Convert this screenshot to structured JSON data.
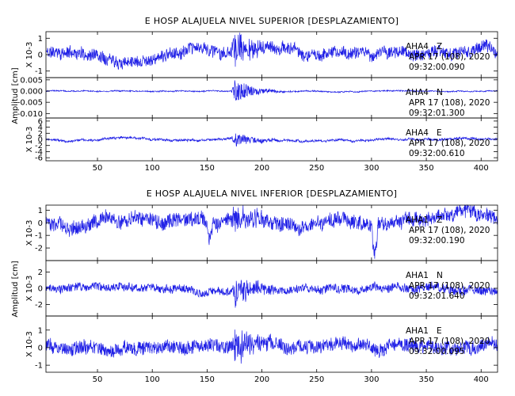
{
  "chart_data": [
    {
      "type": "line",
      "title": "E HOSP ALAJUELA NIVEL SUPERIOR [DESPLAZAMIENTO]",
      "ylabel": "Amplitud [cm]",
      "xlim": [
        3,
        415
      ],
      "xticks": [
        50,
        100,
        150,
        200,
        250,
        300,
        350,
        400
      ],
      "panels": [
        {
          "station": "AHA4",
          "component": "Z",
          "date": "APR 17 (108), 2020",
          "time": "09:32:00.090",
          "exponent_label": "X 10-3",
          "ylim": [
            -1.4,
            1.4
          ],
          "yticks": [
            {
              "value": 1,
              "label": "1"
            },
            {
              "value": 0,
              "label": "0"
            },
            {
              "value": -1,
              "label": "-1"
            }
          ],
          "series": {
            "noise": 0.35,
            "drift": 0.35,
            "burst": 1.2,
            "offset": 0.15,
            "seed": 11,
            "step": null
          }
        },
        {
          "station": "AHA4",
          "component": "N",
          "date": "APR 17 (108), 2020",
          "time": "09:32:01.300",
          "exponent_label": "",
          "ylim": [
            -0.012,
            0.006
          ],
          "yticks": [
            {
              "value": 0.005,
              "label": "0.005"
            },
            {
              "value": 0.0,
              "label": "0.000"
            },
            {
              "value": -0.005,
              "label": "-0.005"
            },
            {
              "value": -0.01,
              "label": "-0.010"
            }
          ],
          "series": {
            "noise": 0.00025,
            "drift": 0.0003,
            "burst": 0.007,
            "offset": 0.0,
            "seed": 23,
            "step": null
          }
        },
        {
          "station": "AHA4",
          "component": "E",
          "date": "APR 17 (108), 2020",
          "time": "09:32:00.610",
          "exponent_label": "X 10-3",
          "ylim": [
            -7,
            7
          ],
          "yticks": [
            {
              "value": 6,
              "label": "6"
            },
            {
              "value": 4,
              "label": "4"
            },
            {
              "value": 2,
              "label": "2"
            },
            {
              "value": 0,
              "label": "0"
            },
            {
              "value": -2,
              "label": "-2"
            },
            {
              "value": -4,
              "label": "-4"
            },
            {
              "value": -6,
              "label": "-6"
            }
          ],
          "series": {
            "noise": 0.35,
            "drift": 0.5,
            "burst": 3.5,
            "offset": 0.0,
            "seed": 37,
            "step": null
          }
        }
      ]
    },
    {
      "type": "line",
      "title": "E HOSP ALAJUELA NIVEL INFERIOR [DESPLAZAMIENTO]",
      "ylabel": "Amplitud [cm]",
      "xlim": [
        3,
        415
      ],
      "xticks": [
        50,
        100,
        150,
        200,
        250,
        300,
        350,
        400
      ],
      "panels": [
        {
          "station": "AHA1",
          "component": "Z",
          "date": "APR 17 (108), 2020",
          "time": "09:32:00.190",
          "exponent_label": "X 10-3",
          "ylim": [
            -3.0,
            1.4
          ],
          "yticks": [
            {
              "value": 1,
              "label": "1"
            },
            {
              "value": 0,
              "label": "0"
            },
            {
              "value": -1,
              "label": "-1"
            },
            {
              "value": -2,
              "label": "-2"
            }
          ],
          "series": {
            "noise": 0.55,
            "drift": 0.5,
            "burst": 1.2,
            "offset": 0.1,
            "seed": 53,
            "step": 300
          }
        },
        {
          "station": "AHA1",
          "component": "N",
          "date": "APR 17 (108), 2020",
          "time": "09:32:01.640",
          "exponent_label": "X 10-3",
          "ylim": [
            -3.4,
            3.4
          ],
          "yticks": [
            {
              "value": 2,
              "label": "2"
            },
            {
              "value": 0,
              "label": "0"
            },
            {
              "value": -2,
              "label": "-2"
            }
          ],
          "series": {
            "noise": 0.5,
            "drift": 0.4,
            "burst": 2.6,
            "offset": 0.0,
            "seed": 71,
            "step": null
          }
        },
        {
          "station": "AHA1",
          "component": "E",
          "date": "APR 17 (108), 2020",
          "time": "09:32:00.095",
          "exponent_label": "X 10-3",
          "ylim": [
            -1.4,
            1.8
          ],
          "yticks": [
            {
              "value": 1,
              "label": "1"
            },
            {
              "value": 0,
              "label": "0"
            },
            {
              "value": -1,
              "label": "-1"
            }
          ],
          "series": {
            "noise": 0.38,
            "drift": 0.25,
            "burst": 1.3,
            "offset": 0.1,
            "seed": 89,
            "step": null
          }
        }
      ]
    }
  ],
  "colors": {
    "trace": "#1f1fe6",
    "axes": "#000000",
    "background": "#ffffff"
  }
}
